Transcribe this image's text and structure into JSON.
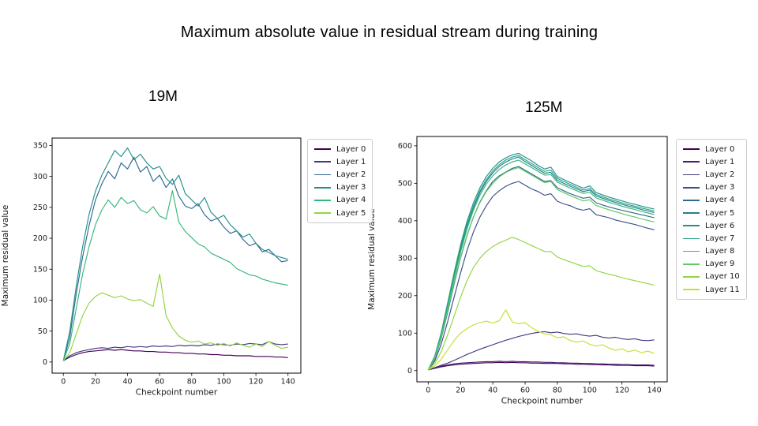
{
  "page": {
    "title": "Maximum absolute value in residual stream during training",
    "background_color": "#ffffff",
    "text_color": "#000000"
  },
  "chart_data": [
    {
      "type": "line",
      "title": "19M",
      "xlabel": "Checkpoint number",
      "ylabel": "Maximum residual value",
      "xlim": [
        -7,
        148
      ],
      "ylim": [
        -18,
        362
      ],
      "xticks": [
        0,
        20,
        40,
        60,
        80,
        100,
        120,
        140
      ],
      "yticks": [
        0,
        50,
        100,
        150,
        200,
        250,
        300,
        350
      ],
      "grid": false,
      "legend_position": "outside-right",
      "x": [
        0,
        4,
        8,
        12,
        16,
        20,
        24,
        28,
        32,
        36,
        40,
        44,
        48,
        52,
        56,
        60,
        64,
        68,
        72,
        76,
        80,
        84,
        88,
        92,
        96,
        100,
        104,
        108,
        112,
        116,
        120,
        124,
        128,
        132,
        136,
        140
      ],
      "series": [
        {
          "name": "Layer 0",
          "color": "#440154",
          "values": [
            2,
            8,
            12,
            15,
            17,
            18,
            19,
            20,
            19,
            20,
            19,
            18,
            18,
            17,
            17,
            16,
            16,
            15,
            15,
            14,
            14,
            13,
            13,
            12,
            12,
            11,
            11,
            10,
            10,
            10,
            9,
            9,
            9,
            8,
            8,
            7
          ]
        },
        {
          "name": "Layer 1",
          "color": "#433981",
          "values": [
            2,
            10,
            15,
            18,
            20,
            22,
            23,
            22,
            24,
            23,
            25,
            24,
            25,
            24,
            26,
            25,
            26,
            25,
            27,
            26,
            27,
            26,
            28,
            27,
            29,
            28,
            27,
            29,
            28,
            30,
            29,
            28,
            33,
            29,
            28,
            29
          ]
        },
        {
          "name": "Layer 2",
          "color": "#31688e",
          "values": [
            2,
            40,
            110,
            170,
            220,
            262,
            288,
            308,
            296,
            322,
            312,
            331,
            307,
            316,
            292,
            302,
            282,
            296,
            268,
            252,
            248,
            256,
            238,
            228,
            232,
            218,
            208,
            212,
            198,
            188,
            192,
            178,
            182,
            172,
            162,
            164
          ]
        },
        {
          "name": "Layer 3",
          "color": "#22908c",
          "values": [
            2,
            50,
            122,
            186,
            238,
            276,
            302,
            322,
            342,
            332,
            346,
            327,
            336,
            322,
            312,
            316,
            297,
            287,
            302,
            272,
            262,
            252,
            266,
            242,
            232,
            237,
            222,
            212,
            202,
            207,
            192,
            182,
            177,
            172,
            169,
            166
          ]
        },
        {
          "name": "Layer 4",
          "color": "#35b779",
          "values": [
            2,
            30,
            86,
            142,
            186,
            222,
            246,
            262,
            250,
            266,
            256,
            261,
            246,
            241,
            251,
            236,
            231,
            277,
            226,
            211,
            201,
            191,
            186,
            176,
            171,
            166,
            161,
            151,
            146,
            141,
            139,
            134,
            131,
            128,
            126,
            124
          ]
        },
        {
          "name": "Layer 5",
          "color": "#91d641",
          "values": [
            2,
            15,
            45,
            75,
            95,
            106,
            112,
            108,
            104,
            107,
            102,
            99,
            101,
            95,
            90,
            142,
            75,
            55,
            42,
            35,
            32,
            34,
            29,
            31,
            27,
            30,
            26,
            31,
            27,
            24,
            29,
            25,
            33,
            27,
            22,
            24
          ]
        }
      ]
    },
    {
      "type": "line",
      "title": "125M",
      "xlabel": "Checkpoint number",
      "ylabel": "Maximum residual value",
      "xlim": [
        -7,
        148
      ],
      "ylim": [
        -30,
        625
      ],
      "xticks": [
        0,
        20,
        40,
        60,
        80,
        100,
        120,
        140
      ],
      "yticks": [
        0,
        100,
        200,
        300,
        400,
        500,
        600
      ],
      "grid": false,
      "legend_position": "outside-right",
      "x": [
        0,
        4,
        8,
        12,
        16,
        20,
        24,
        28,
        32,
        36,
        40,
        44,
        48,
        52,
        56,
        60,
        64,
        68,
        72,
        76,
        80,
        84,
        88,
        92,
        96,
        100,
        104,
        108,
        112,
        116,
        120,
        124,
        128,
        132,
        136,
        140
      ],
      "series": [
        {
          "name": "Layer 0",
          "color": "#440154",
          "values": [
            2,
            6,
            10,
            13,
            15,
            17,
            18,
            19,
            20,
            21,
            21,
            22,
            21,
            22,
            21,
            21,
            20,
            20,
            19,
            19,
            19,
            18,
            18,
            17,
            17,
            16,
            16,
            15,
            15,
            14,
            14,
            14,
            13,
            13,
            13,
            12
          ]
        },
        {
          "name": "Layer 1",
          "color": "#471e6f",
          "values": [
            2,
            7,
            12,
            15,
            18,
            20,
            21,
            22,
            23,
            24,
            24,
            25,
            24,
            25,
            24,
            24,
            23,
            23,
            22,
            22,
            21,
            21,
            20,
            20,
            19,
            19,
            18,
            18,
            17,
            17,
            16,
            16,
            15,
            15,
            15,
            14
          ]
        },
        {
          "name": "Layer 2",
          "color": "#433981",
          "values": [
            2,
            8,
            14,
            20,
            27,
            35,
            43,
            50,
            57,
            63,
            69,
            75,
            81,
            86,
            91,
            95,
            99,
            102,
            104,
            101,
            103,
            99,
            97,
            98,
            94,
            92,
            94,
            89,
            87,
            89,
            85,
            83,
            85,
            81,
            80,
            82
          ]
        },
        {
          "name": "Layer 3",
          "color": "#3b518a",
          "values": [
            2,
            25,
            70,
            130,
            195,
            260,
            320,
            370,
            410,
            440,
            465,
            480,
            492,
            500,
            505,
            495,
            485,
            478,
            468,
            472,
            452,
            445,
            440,
            432,
            428,
            432,
            416,
            412,
            408,
            402,
            398,
            394,
            390,
            385,
            380,
            376
          ]
        },
        {
          "name": "Layer 4",
          "color": "#31688e",
          "values": [
            2,
            30,
            85,
            155,
            230,
            300,
            360,
            410,
            450,
            480,
            505,
            520,
            530,
            540,
            545,
            535,
            525,
            515,
            505,
            507,
            488,
            480,
            472,
            466,
            460,
            463,
            448,
            442,
            437,
            432,
            428,
            424,
            420,
            416,
            412,
            408
          ]
        },
        {
          "name": "Layer 5",
          "color": "#297b8e",
          "values": [
            2,
            35,
            95,
            170,
            250,
            320,
            385,
            435,
            475,
            505,
            528,
            545,
            557,
            565,
            570,
            558,
            548,
            537,
            527,
            529,
            508,
            500,
            492,
            485,
            478,
            482,
            466,
            460,
            454,
            449,
            444,
            439,
            435,
            430,
            426,
            422
          ]
        },
        {
          "name": "Layer 6",
          "color": "#22908c",
          "values": [
            2,
            38,
            100,
            180,
            260,
            335,
            398,
            448,
            488,
            518,
            540,
            557,
            568,
            576,
            580,
            570,
            560,
            548,
            538,
            543,
            518,
            510,
            502,
            494,
            487,
            493,
            475,
            469,
            463,
            458,
            453,
            448,
            444,
            439,
            435,
            431
          ]
        },
        {
          "name": "Layer 7",
          "color": "#24a485",
          "values": [
            2,
            36,
            98,
            175,
            255,
            328,
            390,
            440,
            480,
            510,
            533,
            550,
            562,
            570,
            574,
            563,
            553,
            542,
            532,
            535,
            513,
            505,
            497,
            489,
            482,
            486,
            470,
            464,
            458,
            453,
            448,
            443,
            439,
            434,
            430,
            426
          ]
        },
        {
          "name": "Layer 8",
          "color": "#35b779",
          "values": [
            2,
            34,
            92,
            168,
            245,
            315,
            378,
            428,
            468,
            498,
            520,
            537,
            549,
            557,
            562,
            552,
            542,
            532,
            522,
            523,
            503,
            495,
            487,
            480,
            473,
            476,
            461,
            455,
            449,
            444,
            439,
            434,
            430,
            425,
            421,
            417
          ]
        },
        {
          "name": "Layer 9",
          "color": "#60c860",
          "values": [
            2,
            32,
            88,
            160,
            235,
            302,
            362,
            410,
            448,
            478,
            500,
            517,
            529,
            537,
            542,
            532,
            522,
            512,
            502,
            505,
            483,
            475,
            467,
            460,
            453,
            456,
            441,
            435,
            429,
            424,
            419,
            414,
            410,
            405,
            401,
            397
          ]
        },
        {
          "name": "Layer 10",
          "color": "#91d641",
          "values": [
            2,
            18,
            50,
            95,
            145,
            195,
            240,
            275,
            300,
            318,
            331,
            341,
            348,
            356,
            350,
            342,
            334,
            326,
            318,
            318,
            303,
            296,
            290,
            284,
            278,
            280,
            267,
            262,
            257,
            253,
            248,
            244,
            240,
            236,
            232,
            228
          ]
        },
        {
          "name": "Layer 11",
          "color": "#c7e029",
          "values": [
            2,
            12,
            30,
            55,
            80,
            100,
            112,
            122,
            128,
            132,
            127,
            133,
            162,
            130,
            125,
            128,
            115,
            105,
            98,
            95,
            88,
            90,
            80,
            76,
            79,
            70,
            66,
            69,
            60,
            54,
            58,
            50,
            55,
            48,
            52,
            46
          ]
        }
      ]
    }
  ]
}
